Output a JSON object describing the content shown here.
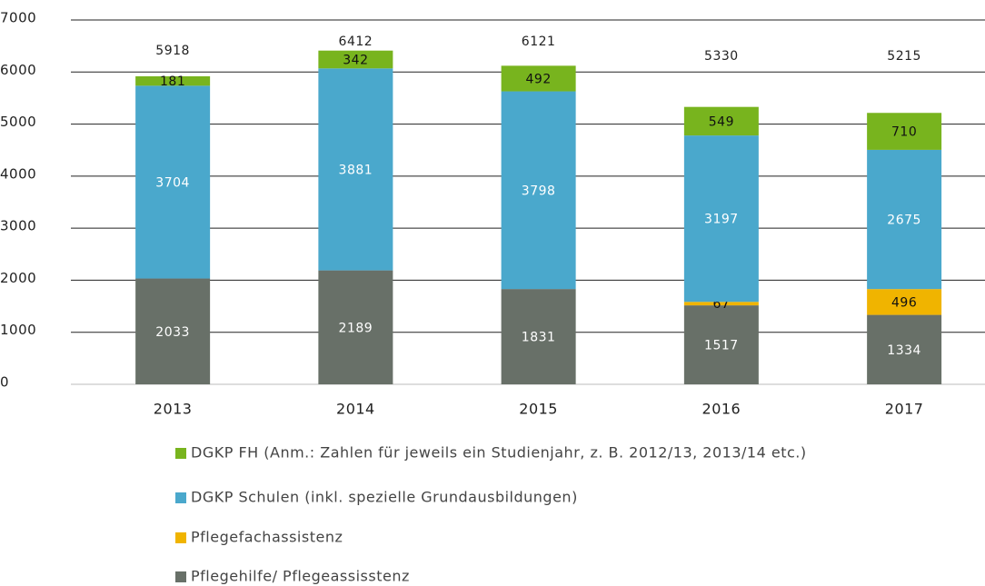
{
  "chart_data": {
    "type": "stacked_bar",
    "categories": [
      "2013",
      "2014",
      "2015",
      "2016",
      "2017"
    ],
    "series": [
      {
        "name": "Pflegehilfe/ Pflegeassisstenz",
        "color": "#687068",
        "values": [
          2033,
          2189,
          1831,
          1517,
          1334
        ]
      },
      {
        "name": "Pflegefachassistenz",
        "color": "#f0b400",
        "values": [
          null,
          null,
          null,
          67,
          496
        ]
      },
      {
        "name": "DGKP Schulen (inkl. spezielle Grundausbildungen)",
        "color": "#4aa8cc",
        "values": [
          3704,
          3881,
          3798,
          3197,
          2675
        ]
      },
      {
        "name": "DGKP FH (Anm.: Zahlen für jeweils ein Studienjahr, z. B. 2012/13, 2013/14 etc.)",
        "color": "#78b41e",
        "values": [
          181,
          342,
          492,
          549,
          710
        ]
      }
    ],
    "totals": [
      5918,
      6412,
      6121,
      5330,
      5215
    ],
    "ylim": [
      0,
      7000
    ],
    "yticks": [
      0,
      1000,
      2000,
      3000,
      4000,
      5000,
      6000,
      7000
    ],
    "grid": true
  }
}
